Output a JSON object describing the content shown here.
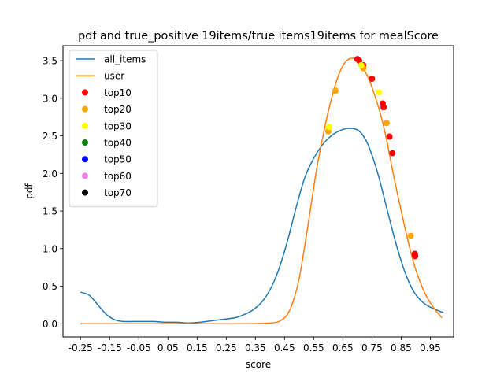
{
  "chart_data": {
    "type": "line",
    "title": "pdf and true_positive 19items/true items19items for mealScore",
    "xlabel": "score",
    "ylabel": "pdf",
    "xlim": [
      -0.31,
      1.03
    ],
    "ylim": [
      -0.175,
      3.7
    ],
    "x_ticks": [
      -0.25,
      -0.15,
      -0.05,
      0.05,
      0.15,
      0.25,
      0.35,
      0.45,
      0.55,
      0.65,
      0.75,
      0.85,
      0.95
    ],
    "x_tick_labels": [
      "-0.25",
      "-0.15",
      "-0.05",
      "0.05",
      "0.15",
      "0.25",
      "0.35",
      "0.45",
      "0.55",
      "0.65",
      "0.75",
      "0.85",
      "0.95"
    ],
    "y_ticks": [
      0.0,
      0.5,
      1.0,
      1.5,
      2.0,
      2.5,
      3.0,
      3.5
    ],
    "y_tick_labels": [
      "0.0",
      "0.5",
      "1.0",
      "1.5",
      "2.0",
      "2.5",
      "3.0",
      "3.5"
    ],
    "grid": false,
    "legend_placement": "top-left",
    "series": [
      {
        "name": "all_items",
        "kind": "line",
        "color": "#1f77b4",
        "x": [
          -0.25,
          -0.22,
          -0.19,
          -0.16,
          -0.13,
          -0.1,
          -0.07,
          -0.04,
          0.0,
          0.04,
          0.08,
          0.12,
          0.16,
          0.2,
          0.24,
          0.28,
          0.31,
          0.34,
          0.37,
          0.4,
          0.43,
          0.46,
          0.49,
          0.52,
          0.55,
          0.58,
          0.61,
          0.64,
          0.67,
          0.7,
          0.72,
          0.74,
          0.77,
          0.8,
          0.83,
          0.86,
          0.89,
          0.92,
          0.95,
          0.98,
          0.995
        ],
        "y": [
          0.42,
          0.38,
          0.25,
          0.12,
          0.05,
          0.03,
          0.03,
          0.03,
          0.03,
          0.02,
          0.02,
          0.01,
          0.02,
          0.04,
          0.06,
          0.08,
          0.12,
          0.18,
          0.28,
          0.45,
          0.72,
          1.1,
          1.55,
          1.95,
          2.2,
          2.38,
          2.5,
          2.57,
          2.6,
          2.58,
          2.5,
          2.35,
          2.0,
          1.55,
          1.1,
          0.72,
          0.45,
          0.3,
          0.22,
          0.17,
          0.15
        ]
      },
      {
        "name": "user",
        "kind": "line",
        "color": "#ff7f0e",
        "x": [
          -0.25,
          -0.1,
          0.05,
          0.2,
          0.3,
          0.4,
          0.44,
          0.47,
          0.5,
          0.53,
          0.56,
          0.59,
          0.61,
          0.63,
          0.65,
          0.67,
          0.69,
          0.7,
          0.71,
          0.72,
          0.74,
          0.76,
          0.78,
          0.8,
          0.82,
          0.84,
          0.86,
          0.88,
          0.9,
          0.93,
          0.96,
          0.99
        ],
        "y": [
          0.0,
          0.0,
          0.0,
          0.0,
          0.0,
          0.01,
          0.05,
          0.2,
          0.6,
          1.3,
          2.05,
          2.65,
          2.98,
          3.25,
          3.43,
          3.52,
          3.53,
          3.5,
          3.45,
          3.4,
          3.25,
          3.03,
          2.78,
          2.45,
          2.05,
          1.68,
          1.33,
          1.0,
          0.72,
          0.42,
          0.22,
          0.08
        ]
      },
      {
        "name": "top10",
        "kind": "scatter",
        "color": "#ff0000",
        "x": [
          0.7,
          0.706,
          0.72,
          0.75,
          0.787,
          0.79,
          0.81,
          0.82,
          0.897,
          0.898
        ],
        "y": [
          3.52,
          3.5,
          3.44,
          3.26,
          2.93,
          2.88,
          2.49,
          2.27,
          0.93,
          0.9
        ]
      },
      {
        "name": "top20",
        "kind": "scatter",
        "color": "#ffa500",
        "x": [
          0.6,
          0.625,
          0.72,
          0.8,
          0.883
        ],
        "y": [
          2.56,
          3.1,
          3.4,
          2.67,
          1.17
        ]
      },
      {
        "name": "top30",
        "kind": "scatter",
        "color": "#ffff00",
        "x": [
          0.603,
          0.713,
          0.774
        ],
        "y": [
          2.62,
          3.44,
          3.08
        ]
      },
      {
        "name": "top40",
        "kind": "scatter",
        "color": "#008000",
        "x": [],
        "y": []
      },
      {
        "name": "top50",
        "kind": "scatter",
        "color": "#0000ff",
        "x": [],
        "y": []
      },
      {
        "name": "top60",
        "kind": "scatter",
        "color": "#ee82ee",
        "x": [],
        "y": []
      },
      {
        "name": "top70",
        "kind": "scatter",
        "color": "#000000",
        "x": [],
        "y": []
      }
    ]
  }
}
